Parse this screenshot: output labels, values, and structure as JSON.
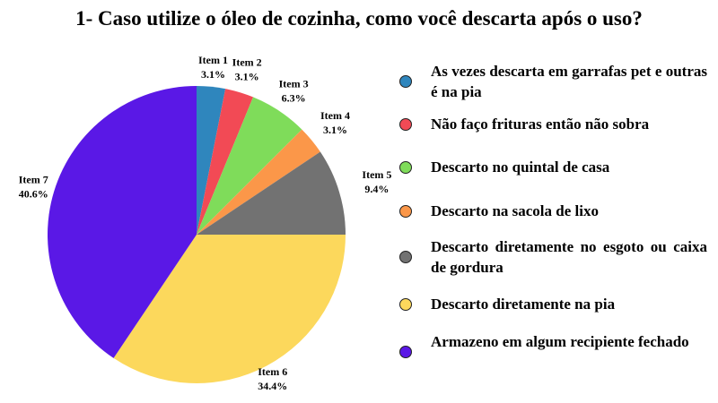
{
  "chart_data": {
    "type": "pie",
    "title": "1- Caso utilize o óleo de cozinha, como você descarta após o uso?",
    "slices": [
      {
        "label": "Item 1",
        "value": 3.1,
        "pct_label": "3.1%",
        "color": "#2f86bd",
        "legend": "As vezes descarta em garrafas pet e outras é na pia"
      },
      {
        "label": "Item 2",
        "value": 3.1,
        "pct_label": "3.1%",
        "color": "#f24a55",
        "legend": "Não faço frituras então não sobra"
      },
      {
        "label": "Item 3",
        "value": 6.3,
        "pct_label": "6.3%",
        "color": "#7fdc5a",
        "legend": "Descarto no quintal de casa"
      },
      {
        "label": "Item 4",
        "value": 3.1,
        "pct_label": "3.1%",
        "color": "#fb9749",
        "legend": "Descarto na sacola de lixo"
      },
      {
        "label": "Item 5",
        "value": 9.4,
        "pct_label": "9.4%",
        "color": "#727272",
        "legend": "Descarto diretamente no esgoto ou caixa de gordura"
      },
      {
        "label": "Item 6",
        "value": 34.4,
        "pct_label": "34.4%",
        "color": "#fcd85c",
        "legend": "Descarto diretamente na pia"
      },
      {
        "label": "Item 7",
        "value": 40.6,
        "pct_label": "40.6%",
        "color": "#5a18e6",
        "legend": "Armazeno em algum recipiente fechado"
      }
    ],
    "start_angle": "12 o'clock",
    "direction": "clockwise",
    "legend_position": "right"
  }
}
